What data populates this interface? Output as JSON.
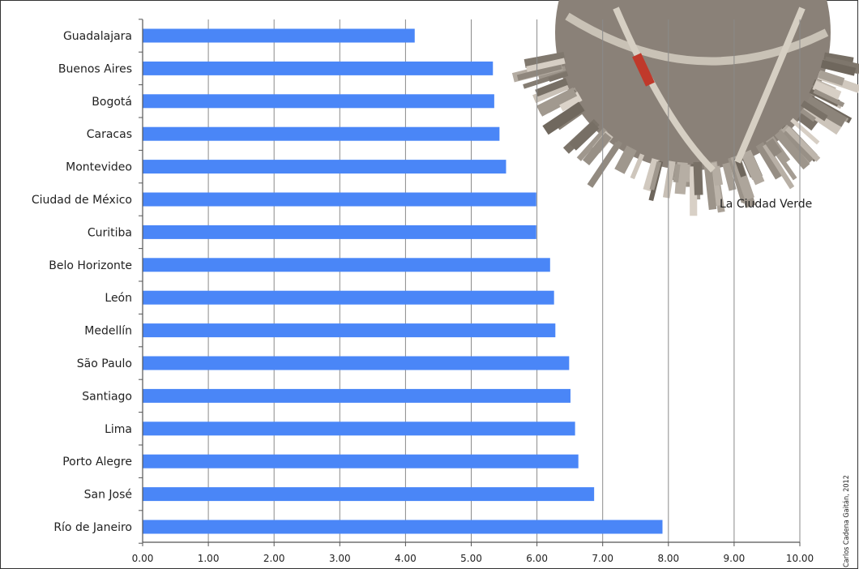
{
  "chart_data": {
    "type": "bar",
    "orientation": "horizontal",
    "categories": [
      "Guadalajara",
      "Buenos Aires",
      "Bogotá",
      "Caracas",
      "Montevideo",
      "Ciudad de México",
      "Curitiba",
      "Belo Horizonte",
      "León",
      "Medellín",
      "São Paulo",
      "Santiago",
      "Lima",
      "Porto Alegre",
      "San José",
      "Río de Janeiro"
    ],
    "values": [
      4.14,
      5.33,
      5.35,
      5.43,
      5.53,
      5.99,
      5.99,
      6.2,
      6.26,
      6.28,
      6.49,
      6.51,
      6.58,
      6.63,
      6.87,
      7.91
    ],
    "x_ticks": [
      "0.00",
      "1.00",
      "2.00",
      "3.00",
      "4.00",
      "5.00",
      "6.00",
      "7.00",
      "8.00",
      "9.00",
      "10.00"
    ],
    "xlim": [
      0,
      10
    ],
    "grid": true,
    "bar_color": "#4a86f7",
    "title": "",
    "xlabel": "",
    "ylabel": ""
  },
  "overlay": {
    "label": "La Ciudad Verde",
    "credit": "Carlos Cadena Gaitán, 2012"
  }
}
